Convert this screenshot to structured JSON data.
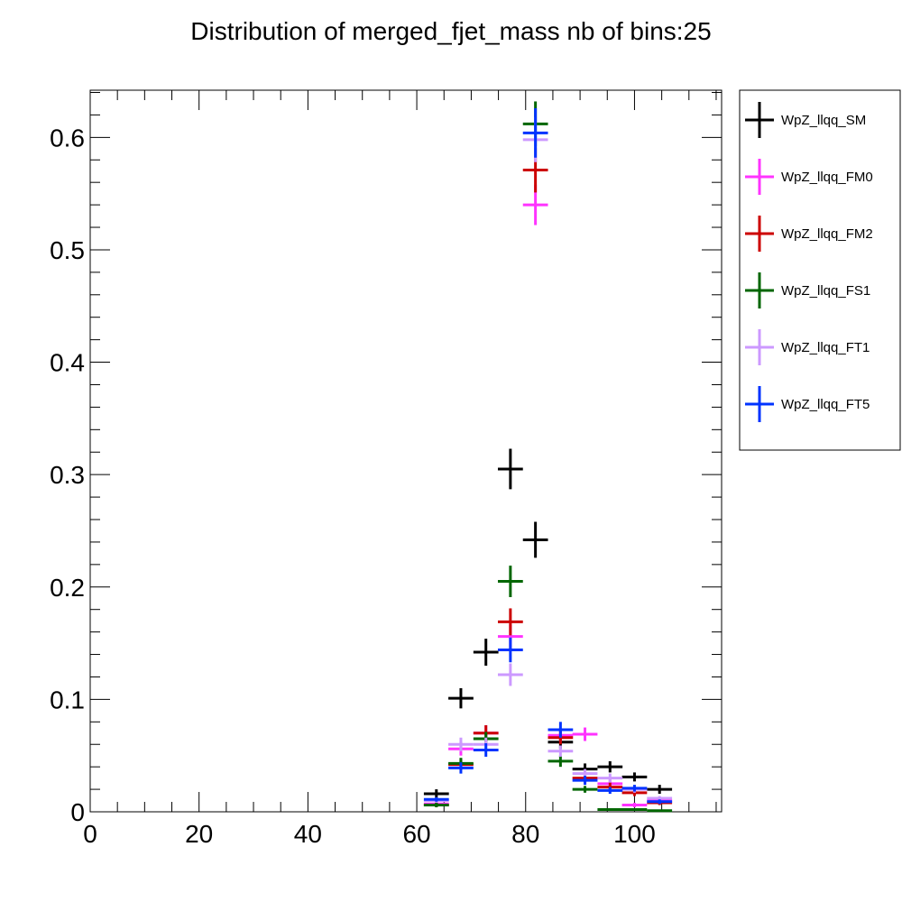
{
  "chart_data": {
    "type": "scatter",
    "title": "Distribution of merged_fjet_mass nb of bins:25",
    "xlabel": "",
    "ylabel": "",
    "xlim": [
      0,
      116
    ],
    "ylim": [
      0,
      0.642
    ],
    "x_ticks": [
      0,
      20,
      40,
      60,
      80,
      100
    ],
    "x_tick_labels": [
      "0",
      "20",
      "40",
      "60",
      "80",
      "100"
    ],
    "y_ticks": [
      0,
      0.1,
      0.2,
      0.3,
      0.4,
      0.5,
      0.6
    ],
    "y_tick_labels": [
      "0",
      "0.1",
      "0.2",
      "0.3",
      "0.4",
      "0.5",
      "0.6"
    ],
    "grid": false,
    "legend_position": "right",
    "bin_half_width": 2.3,
    "series": [
      {
        "name": "WpZ_llqq_SM",
        "color": "#000000",
        "points": [
          {
            "x": 63.6,
            "y": 0.016,
            "err": 0.004
          },
          {
            "x": 68.1,
            "y": 0.101,
            "err": 0.009
          },
          {
            "x": 72.7,
            "y": 0.142,
            "err": 0.012
          },
          {
            "x": 77.2,
            "y": 0.305,
            "err": 0.018
          },
          {
            "x": 81.8,
            "y": 0.242,
            "err": 0.016
          },
          {
            "x": 86.4,
            "y": 0.062,
            "err": 0.006
          },
          {
            "x": 90.9,
            "y": 0.038,
            "err": 0.005
          },
          {
            "x": 95.5,
            "y": 0.04,
            "err": 0.005
          },
          {
            "x": 100.0,
            "y": 0.031,
            "err": 0.004
          },
          {
            "x": 104.6,
            "y": 0.02,
            "err": 0.004
          }
        ]
      },
      {
        "name": "WpZ_llqq_FM0",
        "color": "#ff33ff",
        "points": [
          {
            "x": 63.6,
            "y": 0.007,
            "err": 0.002
          },
          {
            "x": 68.1,
            "y": 0.056,
            "err": 0.006
          },
          {
            "x": 72.7,
            "y": 0.07,
            "err": 0.007
          },
          {
            "x": 77.2,
            "y": 0.156,
            "err": 0.011
          },
          {
            "x": 81.8,
            "y": 0.54,
            "err": 0.018
          },
          {
            "x": 86.4,
            "y": 0.068,
            "err": 0.006
          },
          {
            "x": 90.9,
            "y": 0.069,
            "err": 0.006
          },
          {
            "x": 95.5,
            "y": 0.025,
            "err": 0.004
          },
          {
            "x": 100.0,
            "y": 0.006,
            "err": 0.002
          },
          {
            "x": 104.6,
            "y": 0.01,
            "err": 0.002
          }
        ]
      },
      {
        "name": "WpZ_llqq_FM2",
        "color": "#cc0000",
        "points": [
          {
            "x": 63.6,
            "y": 0.006,
            "err": 0.002
          },
          {
            "x": 68.1,
            "y": 0.042,
            "err": 0.005
          },
          {
            "x": 72.7,
            "y": 0.07,
            "err": 0.007
          },
          {
            "x": 77.2,
            "y": 0.169,
            "err": 0.012
          },
          {
            "x": 81.8,
            "y": 0.571,
            "err": 0.02
          },
          {
            "x": 86.4,
            "y": 0.066,
            "err": 0.006
          },
          {
            "x": 90.9,
            "y": 0.03,
            "err": 0.004
          },
          {
            "x": 95.5,
            "y": 0.022,
            "err": 0.004
          },
          {
            "x": 100.0,
            "y": 0.017,
            "err": 0.003
          },
          {
            "x": 104.6,
            "y": 0.008,
            "err": 0.002
          }
        ]
      },
      {
        "name": "WpZ_llqq_FS1",
        "color": "#006600",
        "points": [
          {
            "x": 63.6,
            "y": 0.006,
            "err": 0.002
          },
          {
            "x": 68.1,
            "y": 0.043,
            "err": 0.005
          },
          {
            "x": 72.7,
            "y": 0.065,
            "err": 0.006
          },
          {
            "x": 77.2,
            "y": 0.205,
            "err": 0.014
          },
          {
            "x": 81.8,
            "y": 0.612,
            "err": 0.02
          },
          {
            "x": 86.4,
            "y": 0.045,
            "err": 0.005
          },
          {
            "x": 90.9,
            "y": 0.02,
            "err": 0.003
          },
          {
            "x": 95.5,
            "y": 0.002,
            "err": 0.001
          },
          {
            "x": 100.0,
            "y": 0.002,
            "err": 0.001
          },
          {
            "x": 104.6,
            "y": 0.001,
            "err": 0.001
          }
        ]
      },
      {
        "name": "WpZ_llqq_FT1",
        "color": "#cc99ff",
        "points": [
          {
            "x": 63.6,
            "y": 0.01,
            "err": 0.002
          },
          {
            "x": 68.1,
            "y": 0.06,
            "err": 0.006
          },
          {
            "x": 72.7,
            "y": 0.06,
            "err": 0.006
          },
          {
            "x": 77.2,
            "y": 0.122,
            "err": 0.01
          },
          {
            "x": 81.8,
            "y": 0.598,
            "err": 0.02
          },
          {
            "x": 86.4,
            "y": 0.054,
            "err": 0.005
          },
          {
            "x": 90.9,
            "y": 0.034,
            "err": 0.004
          },
          {
            "x": 95.5,
            "y": 0.03,
            "err": 0.004
          },
          {
            "x": 100.0,
            "y": 0.02,
            "err": 0.003
          },
          {
            "x": 104.6,
            "y": 0.012,
            "err": 0.002
          }
        ]
      },
      {
        "name": "WpZ_llqq_FT5",
        "color": "#0033ff",
        "points": [
          {
            "x": 63.6,
            "y": 0.011,
            "err": 0.002
          },
          {
            "x": 68.1,
            "y": 0.039,
            "err": 0.005
          },
          {
            "x": 72.7,
            "y": 0.055,
            "err": 0.006
          },
          {
            "x": 77.2,
            "y": 0.144,
            "err": 0.011
          },
          {
            "x": 81.8,
            "y": 0.604,
            "err": 0.022
          },
          {
            "x": 86.4,
            "y": 0.073,
            "err": 0.007
          },
          {
            "x": 90.9,
            "y": 0.028,
            "err": 0.004
          },
          {
            "x": 95.5,
            "y": 0.019,
            "err": 0.003
          },
          {
            "x": 100.0,
            "y": 0.021,
            "err": 0.003
          },
          {
            "x": 104.6,
            "y": 0.009,
            "err": 0.002
          }
        ]
      }
    ]
  }
}
